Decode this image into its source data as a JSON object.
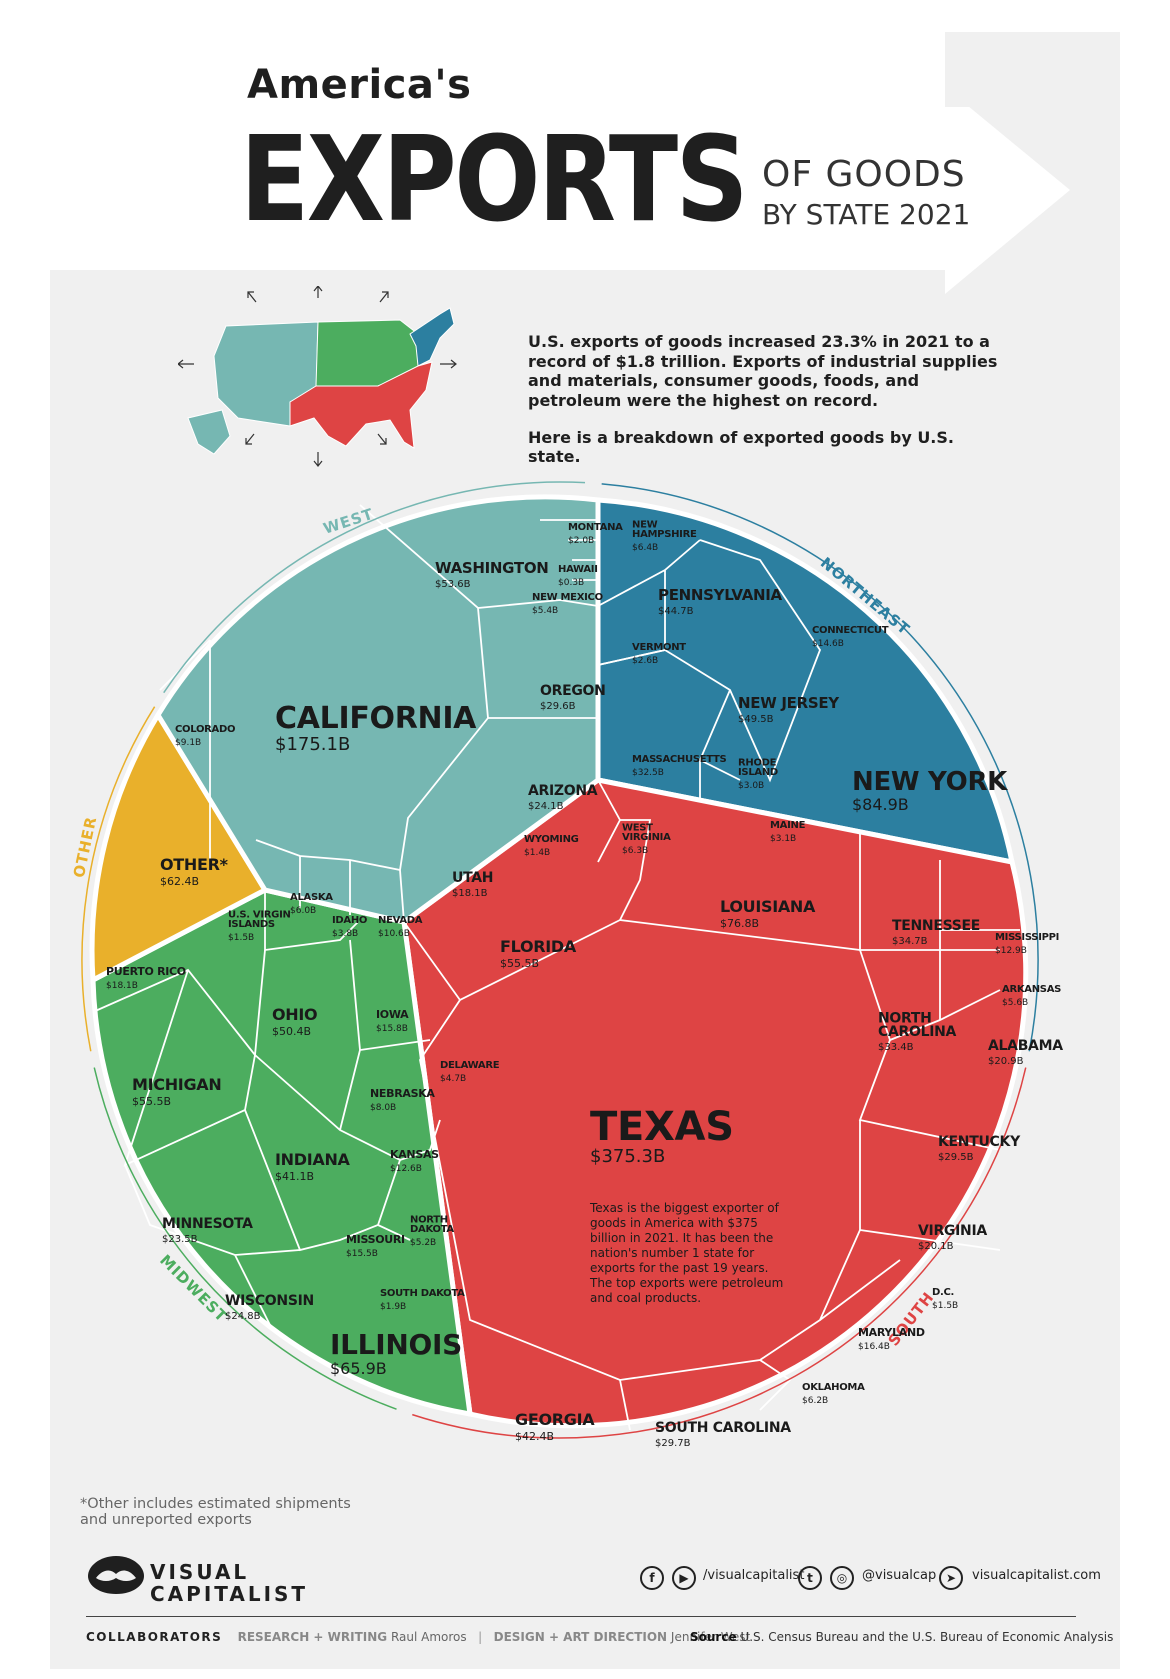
{
  "title": {
    "line1": "America's",
    "main": "EXPORTS",
    "sub1": "OF GOODS",
    "sub2": "BY STATE 2021"
  },
  "intro": {
    "p1": "U.S. exports of goods increased 23.3% in 2021 to a record of $1.8 trillion. Exports of industrial supplies and materials, consumer goods, foods, and petroleum were the highest on record.",
    "p2": "Here is a breakdown of exported goods by U.S. state."
  },
  "colors": {
    "west": "#76b7b2",
    "northeast": "#2c7fa0",
    "south": "#de4444",
    "midwest": "#4cad5f",
    "other": "#e9b02b",
    "border": "#ffffff"
  },
  "regions": {
    "west": "WEST",
    "northeast": "NORTHEAST",
    "south": "SOUTH",
    "midwest": "MIDWEST",
    "other": "OTHER"
  },
  "chart_data": {
    "type": "voronoi-treemap",
    "title": "America's EXPORTS OF GOODS BY STATE 2021",
    "unit": "USD billions",
    "groups": [
      {
        "name": "WEST",
        "items": [
          {
            "label": "CALIFORNIA",
            "value_label": "$175.1B",
            "value": 175.1
          },
          {
            "label": "WASHINGTON",
            "value_label": "$53.6B",
            "value": 53.6
          },
          {
            "label": "OREGON",
            "value_label": "$29.6B",
            "value": 29.6
          },
          {
            "label": "ARIZONA",
            "value_label": "$24.1B",
            "value": 24.1
          },
          {
            "label": "UTAH",
            "value_label": "$18.1B",
            "value": 18.1
          },
          {
            "label": "NEVADA",
            "value_label": "$10.6B",
            "value": 10.6
          },
          {
            "label": "COLORADO",
            "value_label": "$9.1B",
            "value": 9.1
          },
          {
            "label": "ALASKA",
            "value_label": "$6.0B",
            "value": 6.0
          },
          {
            "label": "NEW MEXICO",
            "value_label": "$5.4B",
            "value": 5.4
          },
          {
            "label": "IDAHO",
            "value_label": "$3.8B",
            "value": 3.8
          },
          {
            "label": "MONTANA",
            "value_label": "$2.0B",
            "value": 2.0
          },
          {
            "label": "WYOMING",
            "value_label": "$1.4B",
            "value": 1.4
          },
          {
            "label": "HAWAII",
            "value_label": "$0.3B",
            "value": 0.3
          }
        ]
      },
      {
        "name": "NORTHEAST",
        "items": [
          {
            "label": "NEW YORK",
            "value_label": "$84.9B",
            "value": 84.9
          },
          {
            "label": "NEW JERSEY",
            "value_label": "$49.5B",
            "value": 49.5
          },
          {
            "label": "PENNSYLVANIA",
            "value_label": "$44.7B",
            "value": 44.7
          },
          {
            "label": "MASSACHUSETTS",
            "value_label": "$32.5B",
            "value": 32.5
          },
          {
            "label": "CONNECTICUT",
            "value_label": "$14.6B",
            "value": 14.6
          },
          {
            "label": "NEW HAMPSHIRE",
            "value_label": "$6.4B",
            "value": 6.4
          },
          {
            "label": "MAINE",
            "value_label": "$3.1B",
            "value": 3.1
          },
          {
            "label": "RHODE ISLAND",
            "value_label": "$3.0B",
            "value": 3.0
          },
          {
            "label": "VERMONT",
            "value_label": "$2.6B",
            "value": 2.6
          }
        ]
      },
      {
        "name": "SOUTH",
        "items": [
          {
            "label": "TEXAS",
            "value_label": "$375.3B",
            "value": 375.3
          },
          {
            "label": "LOUISIANA",
            "value_label": "$76.8B",
            "value": 76.8
          },
          {
            "label": "FLORIDA",
            "value_label": "$55.5B",
            "value": 55.5
          },
          {
            "label": "GEORGIA",
            "value_label": "$42.4B",
            "value": 42.4
          },
          {
            "label": "TENNESSEE",
            "value_label": "$34.7B",
            "value": 34.7
          },
          {
            "label": "NORTH CAROLINA",
            "value_label": "$33.4B",
            "value": 33.4
          },
          {
            "label": "KENTUCKY",
            "value_label": "$29.5B",
            "value": 29.5
          },
          {
            "label": "SOUTH CAROLINA",
            "value_label": "$29.7B",
            "value": 29.7
          },
          {
            "label": "ALABAMA",
            "value_label": "$20.9B",
            "value": 20.9
          },
          {
            "label": "VIRGINIA",
            "value_label": "$20.1B",
            "value": 20.1
          },
          {
            "label": "MARYLAND",
            "value_label": "$16.4B",
            "value": 16.4
          },
          {
            "label": "MISSISSIPPI",
            "value_label": "$12.9B",
            "value": 12.9
          },
          {
            "label": "WEST VIRGINIA",
            "value_label": "$6.3B",
            "value": 6.3
          },
          {
            "label": "OKLAHOMA",
            "value_label": "$6.2B",
            "value": 6.2
          },
          {
            "label": "ARKANSAS",
            "value_label": "$5.6B",
            "value": 5.6
          },
          {
            "label": "DELAWARE",
            "value_label": "$4.7B",
            "value": 4.7
          },
          {
            "label": "D.C.",
            "value_label": "$1.5B",
            "value": 1.5
          }
        ]
      },
      {
        "name": "MIDWEST",
        "items": [
          {
            "label": "ILLINOIS",
            "value_label": "$65.9B",
            "value": 65.9
          },
          {
            "label": "MICHIGAN",
            "value_label": "$55.5B",
            "value": 55.5
          },
          {
            "label": "OHIO",
            "value_label": "$50.4B",
            "value": 50.4
          },
          {
            "label": "INDIANA",
            "value_label": "$41.1B",
            "value": 41.1
          },
          {
            "label": "WISCONSIN",
            "value_label": "$24.8B",
            "value": 24.8
          },
          {
            "label": "MINNESOTA",
            "value_label": "$23.5B",
            "value": 23.5
          },
          {
            "label": "IOWA",
            "value_label": "$15.8B",
            "value": 15.8
          },
          {
            "label": "MISSOURI",
            "value_label": "$15.5B",
            "value": 15.5
          },
          {
            "label": "KANSAS",
            "value_label": "$12.6B",
            "value": 12.6
          },
          {
            "label": "NEBRASKA",
            "value_label": "$8.0B",
            "value": 8.0
          },
          {
            "label": "NORTH DAKOTA",
            "value_label": "$5.2B",
            "value": 5.2
          },
          {
            "label": "SOUTH DAKOTA",
            "value_label": "$1.9B",
            "value": 1.9
          }
        ]
      },
      {
        "name": "OTHER",
        "items": [
          {
            "label": "OTHER*",
            "value_label": "$62.4B",
            "value": 62.4
          },
          {
            "label": "PUERTO RICO",
            "value_label": "$18.1B",
            "value": 18.1
          },
          {
            "label": "U.S. VIRGIN ISLANDS",
            "value_label": "$1.5B",
            "value": 1.5
          }
        ]
      }
    ],
    "annotation": "Texas is the biggest exporter of goods in America with $375 billion in 2021. It has been the nation's number 1 state for exports for the past 19 years. The top exports were petroleum and coal products."
  },
  "footnote": "*Other includes estimated shipments and unreported exports",
  "brand": {
    "line1": "VISUAL",
    "line2": "CAPITALIST"
  },
  "social": {
    "handle1": "/visualcapitalist",
    "handle2": "@visualcap",
    "site": "visualcapitalist.com",
    "icons": [
      "facebook-icon",
      "youtube-icon",
      "twitter-icon",
      "instagram-icon",
      "cursor-icon"
    ]
  },
  "credits": {
    "collab": "COLLABORATORS",
    "research_key": "RESEARCH + WRITING",
    "research_val": "Raul Amoros",
    "sep": "|",
    "design_key": "DESIGN + ART DIRECTION",
    "design_val": "Jennifer West",
    "source_key": "Source",
    "source_val": "U.S. Census Bureau and the U.S. Bureau of Economic Analysis"
  }
}
